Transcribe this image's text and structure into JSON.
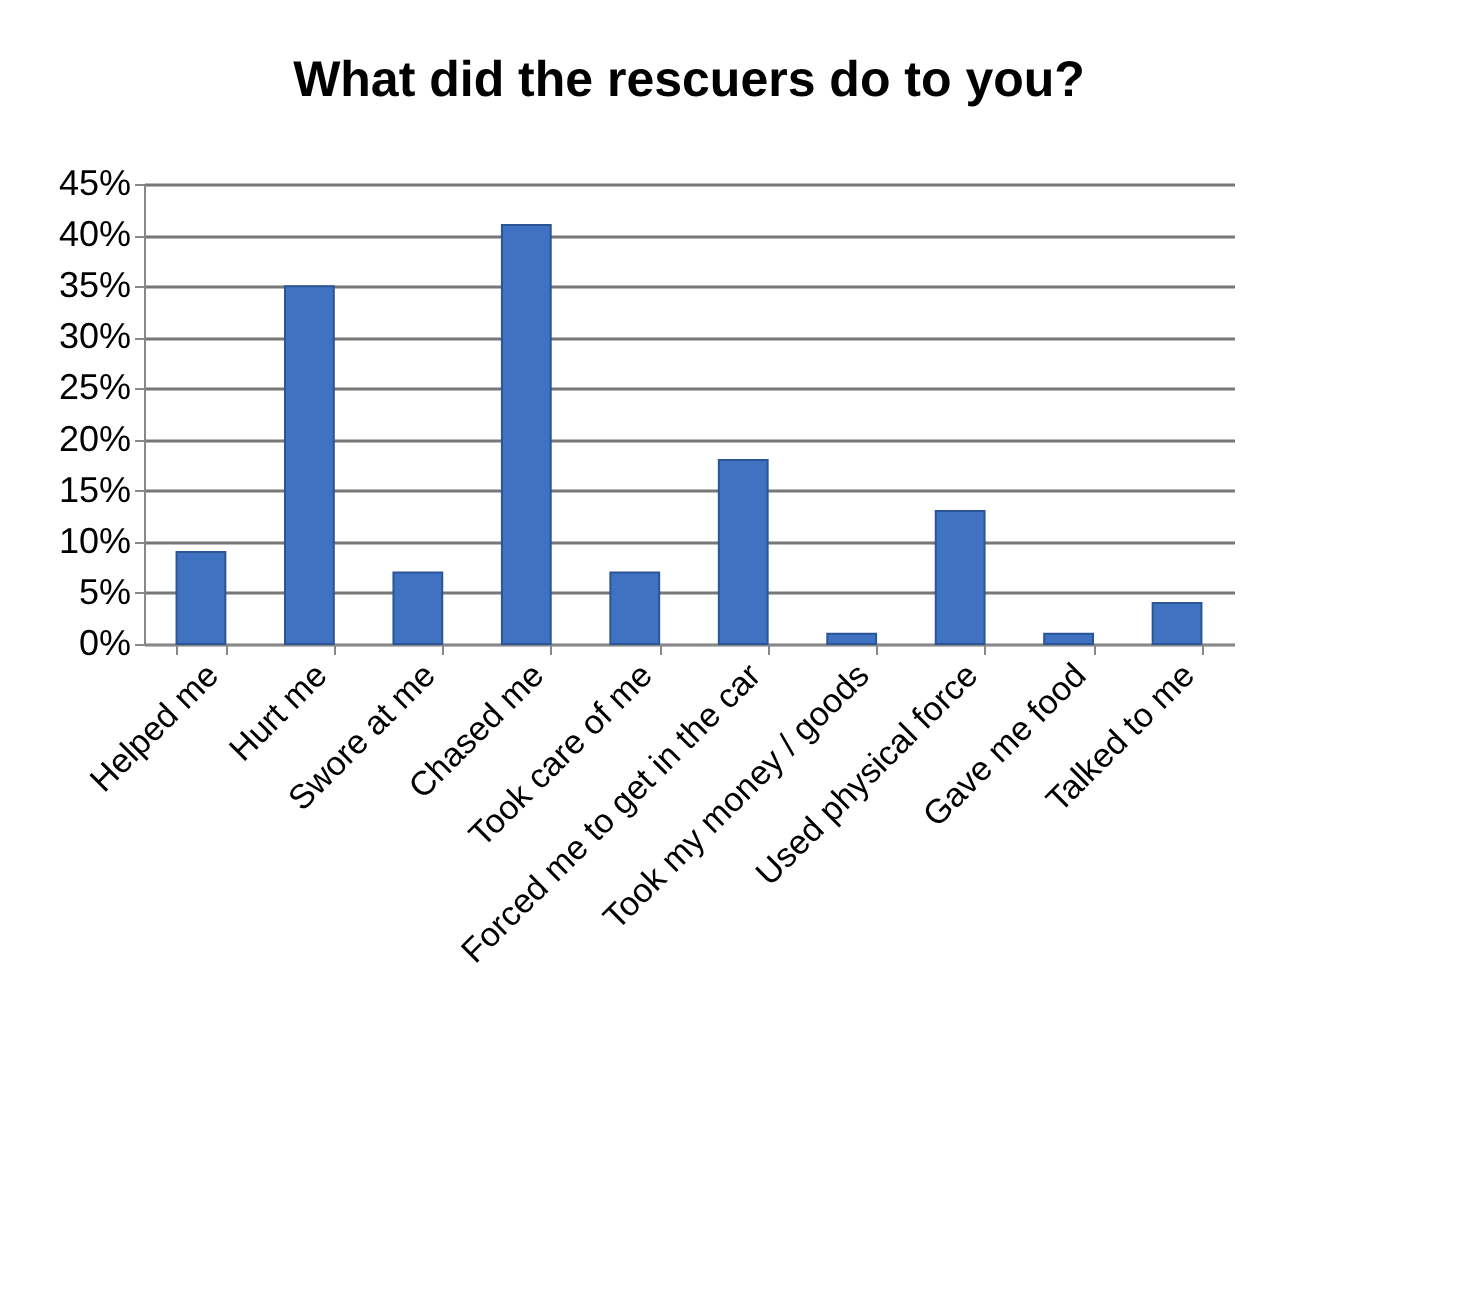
{
  "chart_data": {
    "type": "bar",
    "title": "What did the rescuers do to you?",
    "categories": [
      "Helped me",
      "Hurt me",
      "Swore at me",
      "Chased me",
      "Took care of me",
      "Forced me to get in the car",
      "Took my money / goods",
      "Used physical force",
      "Gave me food",
      "Talked to me"
    ],
    "values": [
      9,
      35,
      7,
      41,
      7,
      18,
      1,
      13,
      1,
      4
    ],
    "color": "#3f72c0",
    "ylim": [
      0,
      45
    ],
    "yticks": [
      {
        "value": 0,
        "label": "0%"
      },
      {
        "value": 5,
        "label": "5%"
      },
      {
        "value": 10,
        "label": "10%"
      },
      {
        "value": 15,
        "label": "15%"
      },
      {
        "value": 20,
        "label": "20%"
      },
      {
        "value": 25,
        "label": "25%"
      },
      {
        "value": 30,
        "label": "30%"
      },
      {
        "value": 35,
        "label": "35%"
      },
      {
        "value": 40,
        "label": "40%"
      },
      {
        "value": 45,
        "label": "45%"
      }
    ],
    "grid": "y"
  }
}
